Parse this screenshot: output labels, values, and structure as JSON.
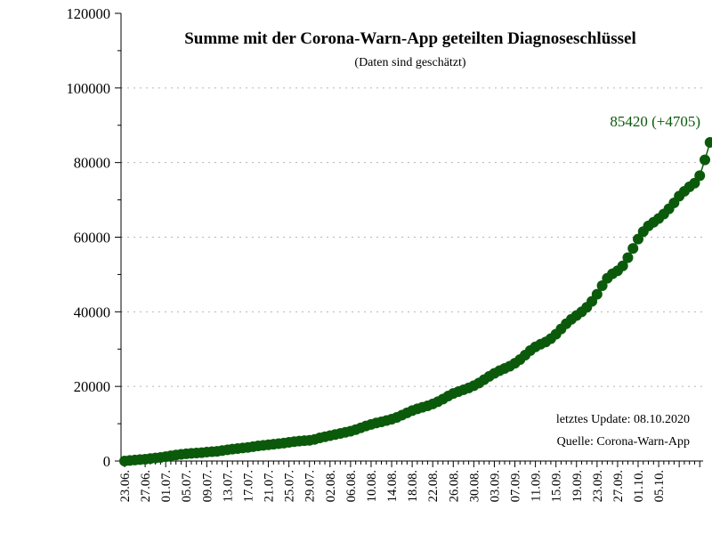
{
  "chart_data": {
    "type": "line",
    "title": "Summe mit der Corona-Warn-App geteilten Diagnoseschlüssel",
    "subtitle": "(Daten sind geschätzt)",
    "xlabel": "",
    "ylabel": "",
    "ylim": [
      0,
      120000
    ],
    "yticks": [
      "0",
      "20000",
      "40000",
      "60000",
      "80000",
      "100000",
      "120000"
    ],
    "grid": true,
    "x_start_date": "2020-06-23",
    "x_end_date": "2020-10-08",
    "xtick_labels": [
      "23.06.",
      "27.06.",
      "01.07.",
      "05.07.",
      "09.07.",
      "13.07.",
      "17.07.",
      "21.07.",
      "25.07.",
      "29.07.",
      "02.08.",
      "06.08.",
      "10.08.",
      "14.08.",
      "18.08.",
      "22.08.",
      "26.08.",
      "30.08.",
      "03.09.",
      "07.09.",
      "11.09.",
      "15.09.",
      "19.09.",
      "23.09.",
      "27.09.",
      "01.10.",
      "05.10."
    ],
    "series": [
      {
        "color": "#0b5a0b",
        "values": [
          0,
          150,
          280,
          380,
          480,
          650,
          800,
          950,
          1150,
          1400,
          1600,
          1800,
          1950,
          2050,
          2150,
          2250,
          2400,
          2500,
          2600,
          2800,
          3000,
          3200,
          3350,
          3500,
          3650,
          3850,
          4050,
          4200,
          4350,
          4500,
          4650,
          4800,
          5000,
          5200,
          5350,
          5450,
          5550,
          5800,
          6200,
          6500,
          6800,
          7100,
          7400,
          7700,
          8000,
          8400,
          8900,
          9400,
          9800,
          10200,
          10500,
          10850,
          11200,
          11700,
          12300,
          12900,
          13500,
          14000,
          14400,
          14800,
          15300,
          15900,
          16600,
          17400,
          18100,
          18600,
          19100,
          19600,
          20200,
          20900,
          21800,
          22700,
          23500,
          24200,
          24800,
          25400,
          26200,
          27200,
          28400,
          29600,
          30600,
          31300,
          31900,
          32800,
          34000,
          35400,
          36800,
          38000,
          39000,
          40000,
          41200,
          42800,
          44700,
          47000,
          49000,
          50200,
          51000,
          52300,
          54500,
          57000,
          59500,
          61500,
          63000,
          64000,
          65000,
          66200,
          67600,
          69200,
          71000,
          72300,
          73500,
          74500,
          76500,
          80715,
          85420
        ]
      }
    ],
    "annotation": "85420 (+4705)",
    "notes": [
      "letztes Update: 08.10.2020",
      "Quelle: Corona-Warn-App"
    ]
  }
}
